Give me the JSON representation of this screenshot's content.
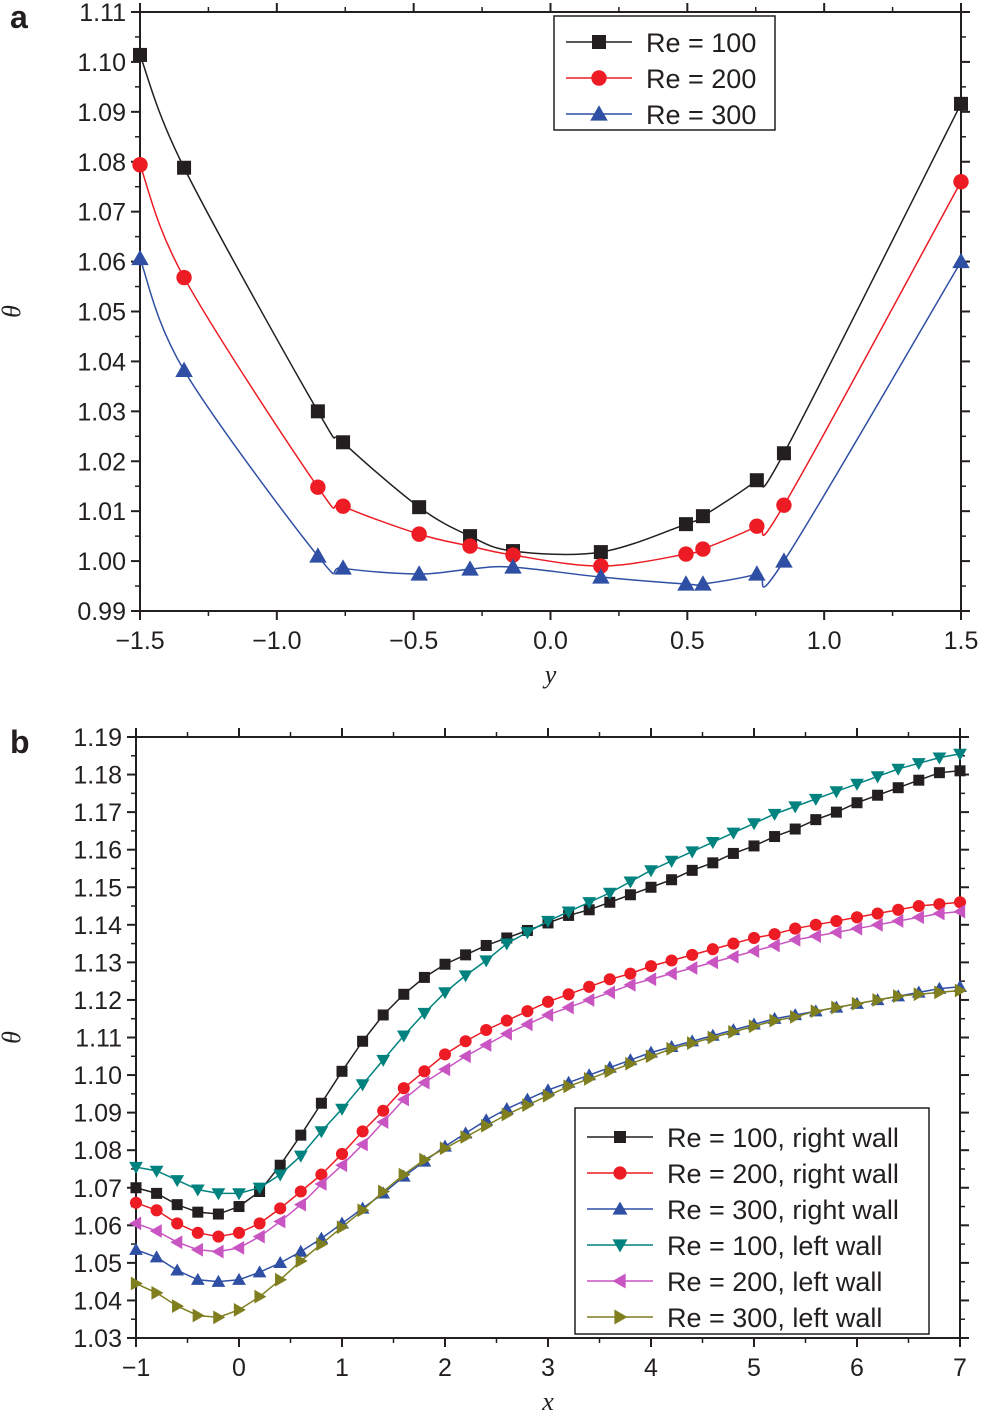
{
  "colors": {
    "axis": "#231f20",
    "re100_right": "#231f20",
    "re200_right": "#ed1c24",
    "re300_right": "#2e4fa3",
    "re100_left": "#00827f",
    "re200_left": "#c955c2",
    "re300_left": "#7f7f20"
  },
  "chart_data": [
    {
      "panel_label": "a",
      "type": "line",
      "xlabel": "y",
      "ylabel": "θ",
      "xlim": [
        -1.5,
        1.5
      ],
      "ylim": [
        0.99,
        1.11
      ],
      "xticks": [
        "−1.5",
        "−1.0",
        "−0.5",
        "0.0",
        "0.5",
        "1.0",
        "1.5"
      ],
      "xtick_values": [
        -1.5,
        -1.0,
        -0.5,
        0.0,
        0.5,
        1.0,
        1.5
      ],
      "yticks": [
        "0.99",
        "1.00",
        "1.01",
        "1.02",
        "1.03",
        "1.04",
        "1.05",
        "1.06",
        "1.07",
        "1.08",
        "1.09",
        "1.10",
        "1.11"
      ],
      "ytick_values": [
        0.99,
        1.0,
        1.01,
        1.02,
        1.03,
        1.04,
        1.05,
        1.06,
        1.07,
        1.08,
        1.09,
        1.1,
        1.11
      ],
      "grid": false,
      "legend_position": "top-right",
      "x": [
        -1.5,
        -1.339,
        -0.85,
        -0.758,
        -0.48,
        -0.294,
        -0.137,
        0.184,
        0.495,
        0.557,
        0.754,
        0.853,
        1.5
      ],
      "series": [
        {
          "name": "Re = 100",
          "marker": "square",
          "color": "#231f20",
          "values": [
            1.1014,
            1.0788,
            1.03,
            1.0238,
            1.0108,
            1.005,
            1.002,
            1.0018,
            1.0074,
            1.009,
            1.0162,
            1.0216,
            1.0916
          ]
        },
        {
          "name": "Re = 200",
          "marker": "circle",
          "color": "#ed1c24",
          "values": [
            1.0794,
            1.0568,
            1.0148,
            1.011,
            1.0054,
            1.003,
            1.0012,
            0.999,
            1.0014,
            1.0024,
            1.007,
            1.0112,
            1.076
          ]
        },
        {
          "name": "Re = 300",
          "marker": "triangle-up",
          "color": "#2e4fa3",
          "values": [
            1.0606,
            1.0382,
            1.001,
            0.9986,
            0.9974,
            0.9984,
            0.9988,
            0.9968,
            0.9954,
            0.9954,
            0.9974,
            1.0,
            1.06
          ]
        }
      ]
    },
    {
      "panel_label": "b",
      "type": "line",
      "xlabel": "x",
      "ylabel": "θ",
      "xlim": [
        -1,
        7
      ],
      "ylim": [
        1.03,
        1.19
      ],
      "xticks": [
        "−1",
        "0",
        "1",
        "2",
        "3",
        "4",
        "5",
        "6",
        "7"
      ],
      "xtick_values": [
        -1,
        0,
        1,
        2,
        3,
        4,
        5,
        6,
        7
      ],
      "yticks": [
        "1.03",
        "1.04",
        "1.05",
        "1.06",
        "1.07",
        "1.08",
        "1.09",
        "1.10",
        "1.11",
        "1.12",
        "1.13",
        "1.14",
        "1.15",
        "1.16",
        "1.17",
        "1.18",
        "1.19"
      ],
      "ytick_values": [
        1.03,
        1.04,
        1.05,
        1.06,
        1.07,
        1.08,
        1.09,
        1.1,
        1.11,
        1.12,
        1.13,
        1.14,
        1.15,
        1.16,
        1.17,
        1.18,
        1.19
      ],
      "grid": false,
      "legend_position": "bottom-right",
      "x": [
        -1,
        -0.8,
        -0.6,
        -0.4,
        -0.2,
        0,
        0.2,
        0.4,
        0.6,
        0.8,
        1.0,
        1.2,
        1.4,
        1.6,
        1.8,
        2.0,
        2.2,
        2.4,
        2.6,
        2.8,
        3.0,
        3.2,
        3.4,
        3.6,
        3.8,
        4.0,
        4.2,
        4.4,
        4.6,
        4.8,
        5.0,
        5.2,
        5.4,
        5.6,
        5.8,
        6.0,
        6.2,
        6.4,
        6.6,
        6.8,
        7.0
      ],
      "series": [
        {
          "name": "Re = 100, right wall",
          "marker": "square",
          "color": "#231f20",
          "values": [
            1.07,
            1.0685,
            1.0655,
            1.0635,
            1.063,
            1.065,
            1.069,
            1.076,
            1.084,
            1.0925,
            1.101,
            1.109,
            1.116,
            1.1215,
            1.126,
            1.1295,
            1.132,
            1.1345,
            1.1365,
            1.1385,
            1.1405,
            1.1425,
            1.144,
            1.146,
            1.148,
            1.15,
            1.152,
            1.1545,
            1.1565,
            1.159,
            1.161,
            1.1635,
            1.1655,
            1.168,
            1.17,
            1.1725,
            1.1745,
            1.1765,
            1.1785,
            1.1805,
            1.181
          ]
        },
        {
          "name": "Re = 200, right wall",
          "marker": "circle",
          "color": "#ed1c24",
          "values": [
            1.066,
            1.064,
            1.0605,
            1.058,
            1.057,
            1.058,
            1.0605,
            1.0645,
            1.069,
            1.0735,
            1.079,
            1.085,
            1.0905,
            1.0965,
            1.101,
            1.1055,
            1.109,
            1.112,
            1.1145,
            1.117,
            1.1195,
            1.1215,
            1.1235,
            1.1255,
            1.127,
            1.129,
            1.1305,
            1.132,
            1.1335,
            1.135,
            1.1365,
            1.1375,
            1.139,
            1.14,
            1.141,
            1.142,
            1.143,
            1.144,
            1.145,
            1.1455,
            1.146
          ]
        },
        {
          "name": "Re = 300, right wall",
          "marker": "triangle-up",
          "color": "#2e4fa3",
          "values": [
            1.0535,
            1.0515,
            1.048,
            1.0455,
            1.045,
            1.0455,
            1.0475,
            1.05,
            1.053,
            1.0565,
            1.0605,
            1.0645,
            1.0685,
            1.073,
            1.077,
            1.081,
            1.0845,
            1.088,
            1.091,
            1.0935,
            1.096,
            1.098,
            1.1,
            1.102,
            1.104,
            1.106,
            1.1075,
            1.109,
            1.1105,
            1.112,
            1.1135,
            1.115,
            1.116,
            1.117,
            1.118,
            1.119,
            1.12,
            1.121,
            1.122,
            1.123,
            1.1235
          ]
        },
        {
          "name": "Re = 100, left wall",
          "marker": "triangle-down",
          "color": "#00827f",
          "values": [
            1.0755,
            1.0745,
            1.072,
            1.0695,
            1.0685,
            1.0685,
            1.07,
            1.0735,
            1.0785,
            1.085,
            1.091,
            1.0975,
            1.104,
            1.1105,
            1.1165,
            1.122,
            1.1265,
            1.1305,
            1.135,
            1.138,
            1.141,
            1.1435,
            1.146,
            1.1485,
            1.1515,
            1.1545,
            1.157,
            1.1595,
            1.162,
            1.1645,
            1.167,
            1.1695,
            1.1715,
            1.1735,
            1.1755,
            1.1775,
            1.1795,
            1.1815,
            1.183,
            1.1845,
            1.1855
          ]
        },
        {
          "name": "Re = 200, left wall",
          "marker": "triangle-left",
          "color": "#c955c2",
          "values": [
            1.0605,
            1.0585,
            1.0555,
            1.0535,
            1.053,
            1.054,
            1.057,
            1.061,
            1.0655,
            1.071,
            1.076,
            1.0815,
            1.0875,
            1.0935,
            1.098,
            1.1015,
            1.105,
            1.108,
            1.111,
            1.1135,
            1.116,
            1.118,
            1.12,
            1.122,
            1.124,
            1.1255,
            1.127,
            1.1285,
            1.13,
            1.1315,
            1.133,
            1.1345,
            1.136,
            1.137,
            1.138,
            1.139,
            1.14,
            1.141,
            1.142,
            1.143,
            1.1435
          ]
        },
        {
          "name": "Re = 300, left wall",
          "marker": "triangle-right",
          "color": "#7f7f20",
          "values": [
            1.0445,
            1.042,
            1.0385,
            1.036,
            1.0355,
            1.0375,
            1.041,
            1.0455,
            1.0505,
            1.055,
            1.0595,
            1.064,
            1.069,
            1.0735,
            1.0775,
            1.0805,
            1.0835,
            1.0865,
            1.0895,
            1.092,
            1.0945,
            1.097,
            1.099,
            1.101,
            1.103,
            1.105,
            1.107,
            1.1085,
            1.11,
            1.1115,
            1.113,
            1.1145,
            1.1155,
            1.117,
            1.118,
            1.119,
            1.12,
            1.121,
            1.1215,
            1.122,
            1.1225
          ]
        }
      ]
    }
  ]
}
